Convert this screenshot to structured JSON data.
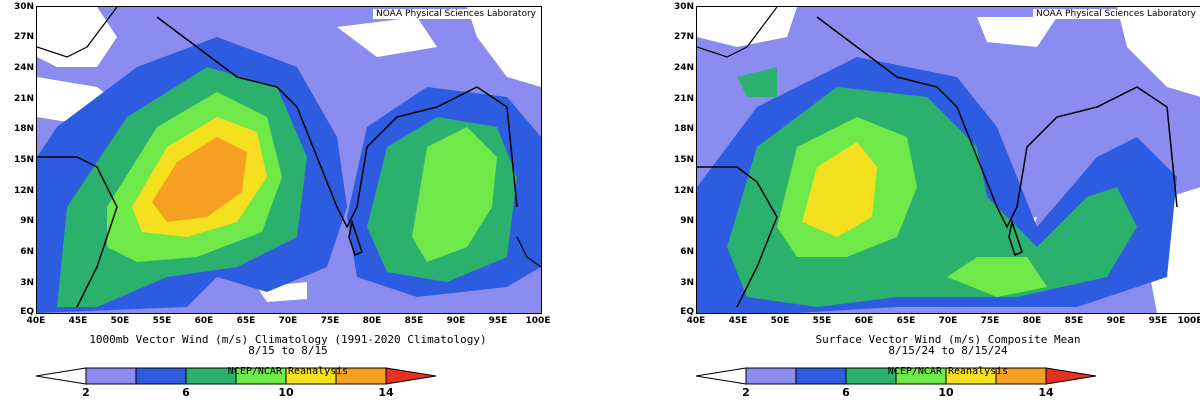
{
  "colors": {
    "white": "#ffffff",
    "c1": "#8a8cf0",
    "c2": "#2e5ce0",
    "c3": "#2bb06e",
    "c4": "#6fe84a",
    "c5": "#f5e020",
    "c6": "#f5a020",
    "c7": "#e83020"
  },
  "colorbar_ticks": [
    "2",
    "6",
    "10",
    "14"
  ],
  "x_ticks": [
    "40E",
    "45E",
    "50E",
    "55E",
    "60E",
    "65E",
    "70E",
    "75E",
    "80E",
    "85E",
    "90E",
    "95E",
    "100E"
  ],
  "y_ticks": [
    "30N",
    "27N",
    "24N",
    "21N",
    "18N",
    "15N",
    "12N",
    "9N",
    "6N",
    "3N",
    "EQ"
  ],
  "panels": [
    {
      "lab": "NOAA Physical Sciences Laboratory",
      "title_line1": "1000mb Vector Wind (m/s) Climatology (1991-2020 Climatology)",
      "title_line2": "8/15  to 8/15",
      "source": "NCEP/NCAR Reanalysis"
    },
    {
      "lab": "NOAA Physical Sciences Laboratory",
      "title_line1": "Surface Vector Wind (m/s) Composite Mean",
      "title_line2": "8/15/24  to 8/15/24",
      "source": "NCEP/NCAR Reanalysis"
    }
  ]
}
